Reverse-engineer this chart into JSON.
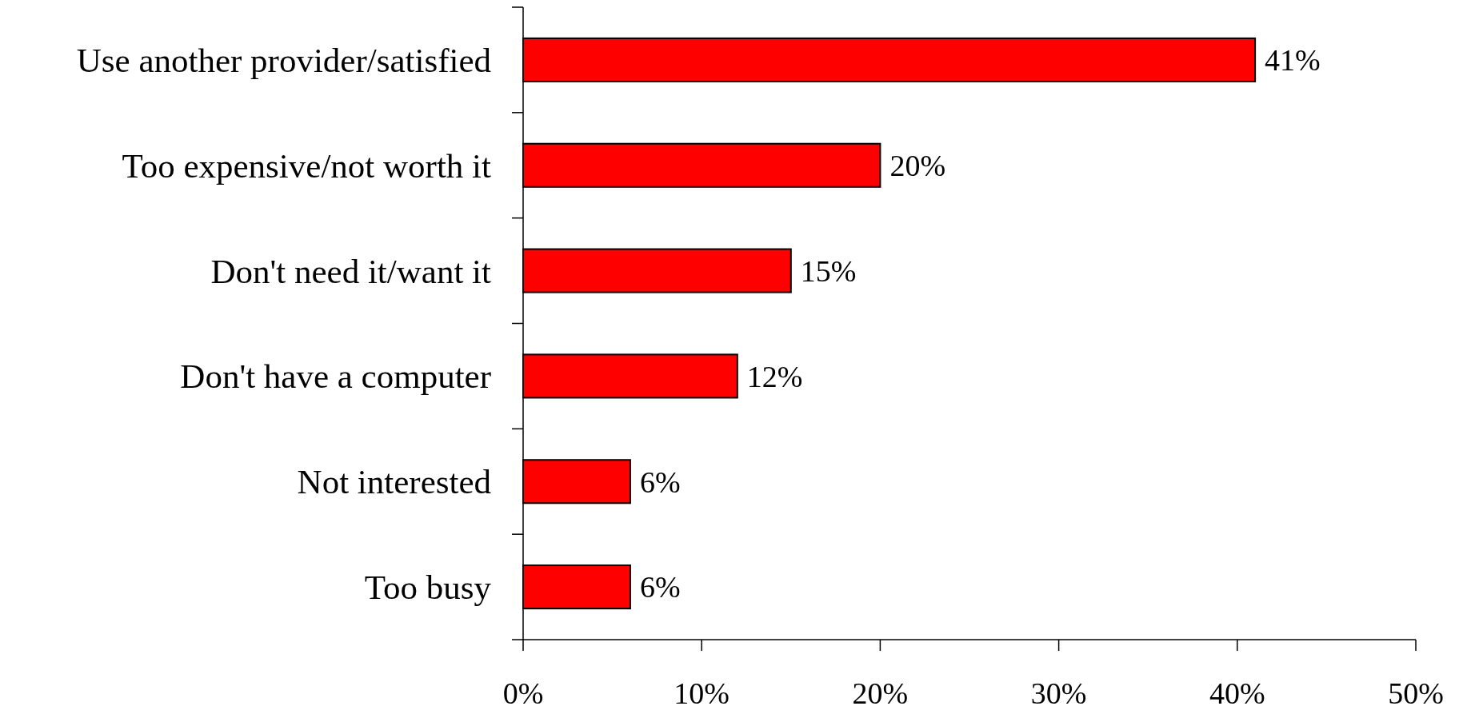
{
  "chart_data": {
    "type": "bar",
    "orientation": "horizontal",
    "categories": [
      "Use another provider/satisfied",
      "Too expensive/not worth it",
      "Don't need it/want it",
      "Don't have a computer",
      "Not interested",
      "Too busy"
    ],
    "values": [
      41,
      20,
      15,
      12,
      6,
      6
    ],
    "value_labels": [
      "41%",
      "20%",
      "15%",
      "12%",
      "6%",
      "6%"
    ],
    "color": "#ff0000",
    "xlim": [
      0,
      50
    ],
    "xticks": [
      {
        "value": 0,
        "label": "0%"
      },
      {
        "value": 10,
        "label": "10%"
      },
      {
        "value": 20,
        "label": "20%"
      },
      {
        "value": 30,
        "label": "30%"
      },
      {
        "value": 40,
        "label": "40%"
      },
      {
        "value": 50,
        "label": "50%"
      }
    ],
    "grid": false
  }
}
